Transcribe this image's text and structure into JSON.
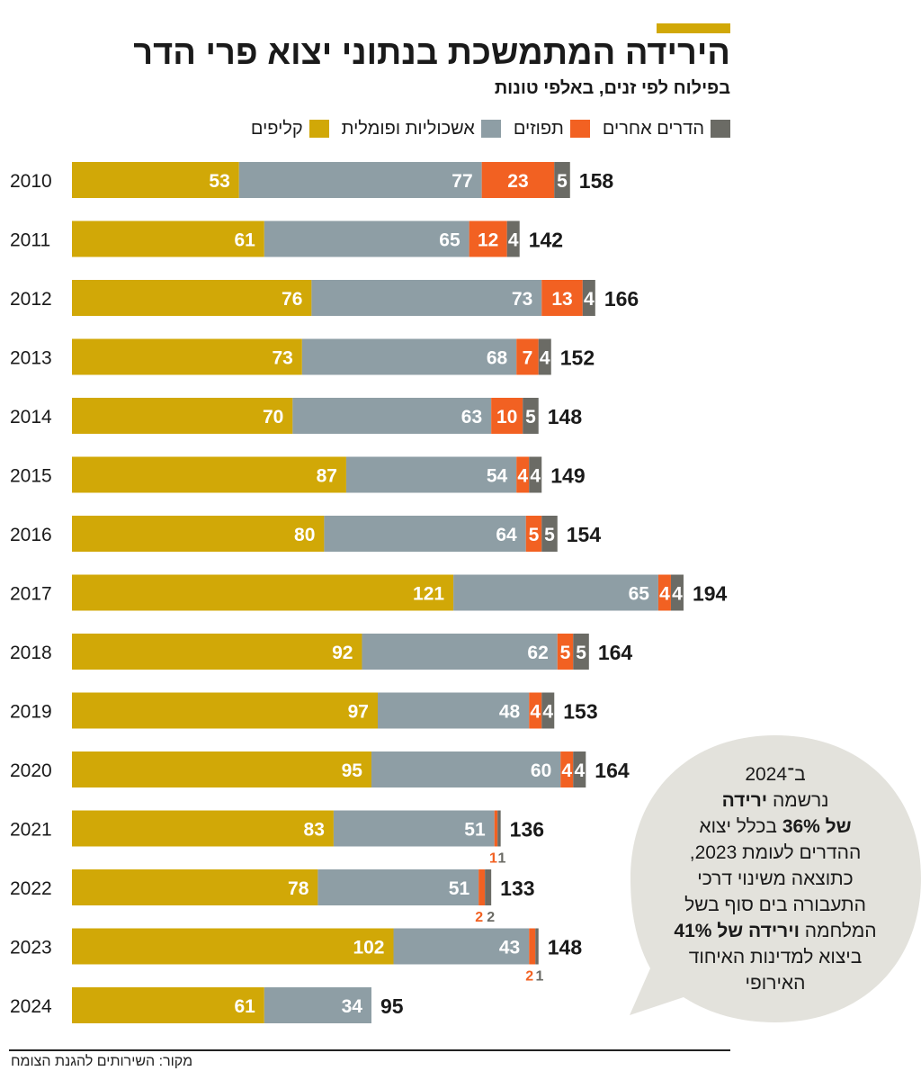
{
  "header": {
    "title": "הירידה המתמשכת בנתוני יצוא פרי הדר",
    "subtitle": "בפילוח לפי זנים, באלפי טונות"
  },
  "legend": [
    {
      "label": "הדרים אחרים",
      "color": "#6b6b65"
    },
    {
      "label": "תפוזים",
      "color": "#f26122"
    },
    {
      "label": "אשכוליות ופומלית",
      "color": "#8e9ea5"
    },
    {
      "label": "קליפים",
      "color": "#d1a807"
    }
  ],
  "chart_data": {
    "type": "bar",
    "orientation": "horizontal",
    "stacked": true,
    "categories": [
      "2010",
      "2011",
      "2012",
      "2013",
      "2014",
      "2015",
      "2016",
      "2017",
      "2018",
      "2019",
      "2020",
      "2021",
      "2022",
      "2023",
      "2024"
    ],
    "series": [
      {
        "name": "קליפים",
        "color": "#d1a807",
        "values": [
          53,
          61,
          76,
          73,
          70,
          87,
          80,
          121,
          92,
          97,
          95,
          83,
          78,
          102,
          61
        ]
      },
      {
        "name": "אשכוליות ופומלית",
        "color": "#8e9ea5",
        "values": [
          77,
          65,
          73,
          68,
          63,
          54,
          64,
          65,
          62,
          48,
          60,
          51,
          51,
          43,
          34
        ]
      },
      {
        "name": "תפוזים",
        "color": "#f26122",
        "values": [
          23,
          12,
          13,
          7,
          10,
          4,
          5,
          4,
          5,
          4,
          4,
          1,
          2,
          2,
          0
        ]
      },
      {
        "name": "הדרים אחרים",
        "color": "#6b6b65",
        "values": [
          5,
          4,
          4,
          4,
          5,
          4,
          5,
          4,
          5,
          4,
          4,
          1,
          2,
          1,
          0
        ]
      }
    ],
    "totals": [
      158,
      142,
      166,
      152,
      148,
      149,
      154,
      194,
      164,
      153,
      164,
      136,
      133,
      148,
      95
    ]
  },
  "callout": {
    "line1": "ב־2024",
    "line2a": "נרשמה ",
    "line2b": "ירידה",
    "line3a": "של 36%",
    "line3b": " בכלל יצוא",
    "line4": "ההדרים לעומת 2023,",
    "line5": "כתוצאה משינוי דרכי",
    "line6": "התעבורה בים סוף בשל",
    "line7a": "המלחמה ",
    "line7b": "וירידה של 41%",
    "line8": "ביצוא למדינות האיחוד",
    "line9": "האירופי"
  },
  "source": "מקור: השירותים להגנת הצומח"
}
